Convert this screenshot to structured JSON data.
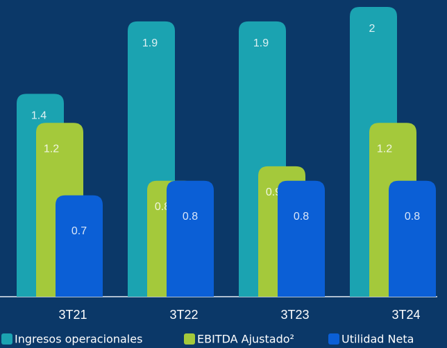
{
  "chart_data": {
    "type": "bar",
    "categories": [
      "3T21",
      "3T22",
      "3T23",
      "3T24"
    ],
    "series": [
      {
        "name": "Ingresos operacionales",
        "color": "#1ba3b1",
        "values": [
          1.4,
          1.9,
          1.9,
          2.0
        ]
      },
      {
        "name": "EBITDA Ajustado²",
        "color": "#a4c93b",
        "values": [
          1.2,
          0.8,
          0.9,
          1.2
        ]
      },
      {
        "name": "Utilidad Neta",
        "color": "#0b5fd6",
        "values": [
          0.7,
          0.8,
          0.8,
          0.8
        ]
      }
    ],
    "legend": "bottom"
  }
}
